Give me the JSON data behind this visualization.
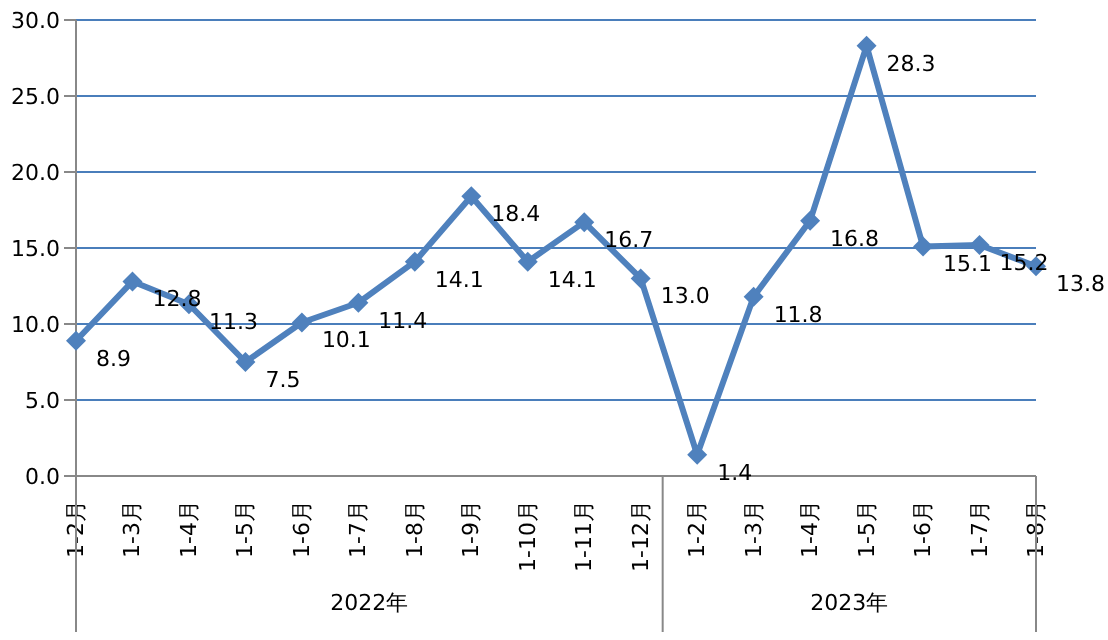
{
  "chart_data": {
    "type": "line",
    "categories": [
      "1-2月",
      "1-3月",
      "1-4月",
      "1-5月",
      "1-6月",
      "1-7月",
      "1-8月",
      "1-9月",
      "1-10月",
      "1-11月",
      "1-12月",
      "1-2月",
      "1-3月",
      "1-4月",
      "1-5月",
      "1-6月",
      "1-7月",
      "1-8月"
    ],
    "series": [
      {
        "color": "#4f81bd",
        "values": [
          8.9,
          12.8,
          11.3,
          7.5,
          10.1,
          11.4,
          14.1,
          18.4,
          14.1,
          16.7,
          13.0,
          1.4,
          11.8,
          16.8,
          28.3,
          15.1,
          15.2,
          13.8
        ]
      }
    ],
    "ylim": [
      0,
      30
    ],
    "yticks": [
      {
        "value": 0,
        "label": "0.0"
      },
      {
        "value": 5,
        "label": "5.0"
      },
      {
        "value": 10,
        "label": "10.0"
      },
      {
        "value": 15,
        "label": "15.0"
      },
      {
        "value": 20,
        "label": "20.0"
      },
      {
        "value": 25,
        "label": "25.0"
      },
      {
        "value": 30,
        "label": "30.0"
      }
    ],
    "value_labels": [
      "8.9",
      "12.8",
      "11.3",
      "7.5",
      "10.1",
      "11.4",
      "14.1",
      "18.4",
      "14.1",
      "16.7",
      "13.0",
      "1.4",
      "11.8",
      "16.8",
      "28.3",
      "15.1",
      "15.2",
      "13.8"
    ],
    "grid": "y",
    "marker": "diamond",
    "line_style": "solid",
    "legend": false,
    "annotations": [
      "2022年",
      "2023年"
    ]
  }
}
